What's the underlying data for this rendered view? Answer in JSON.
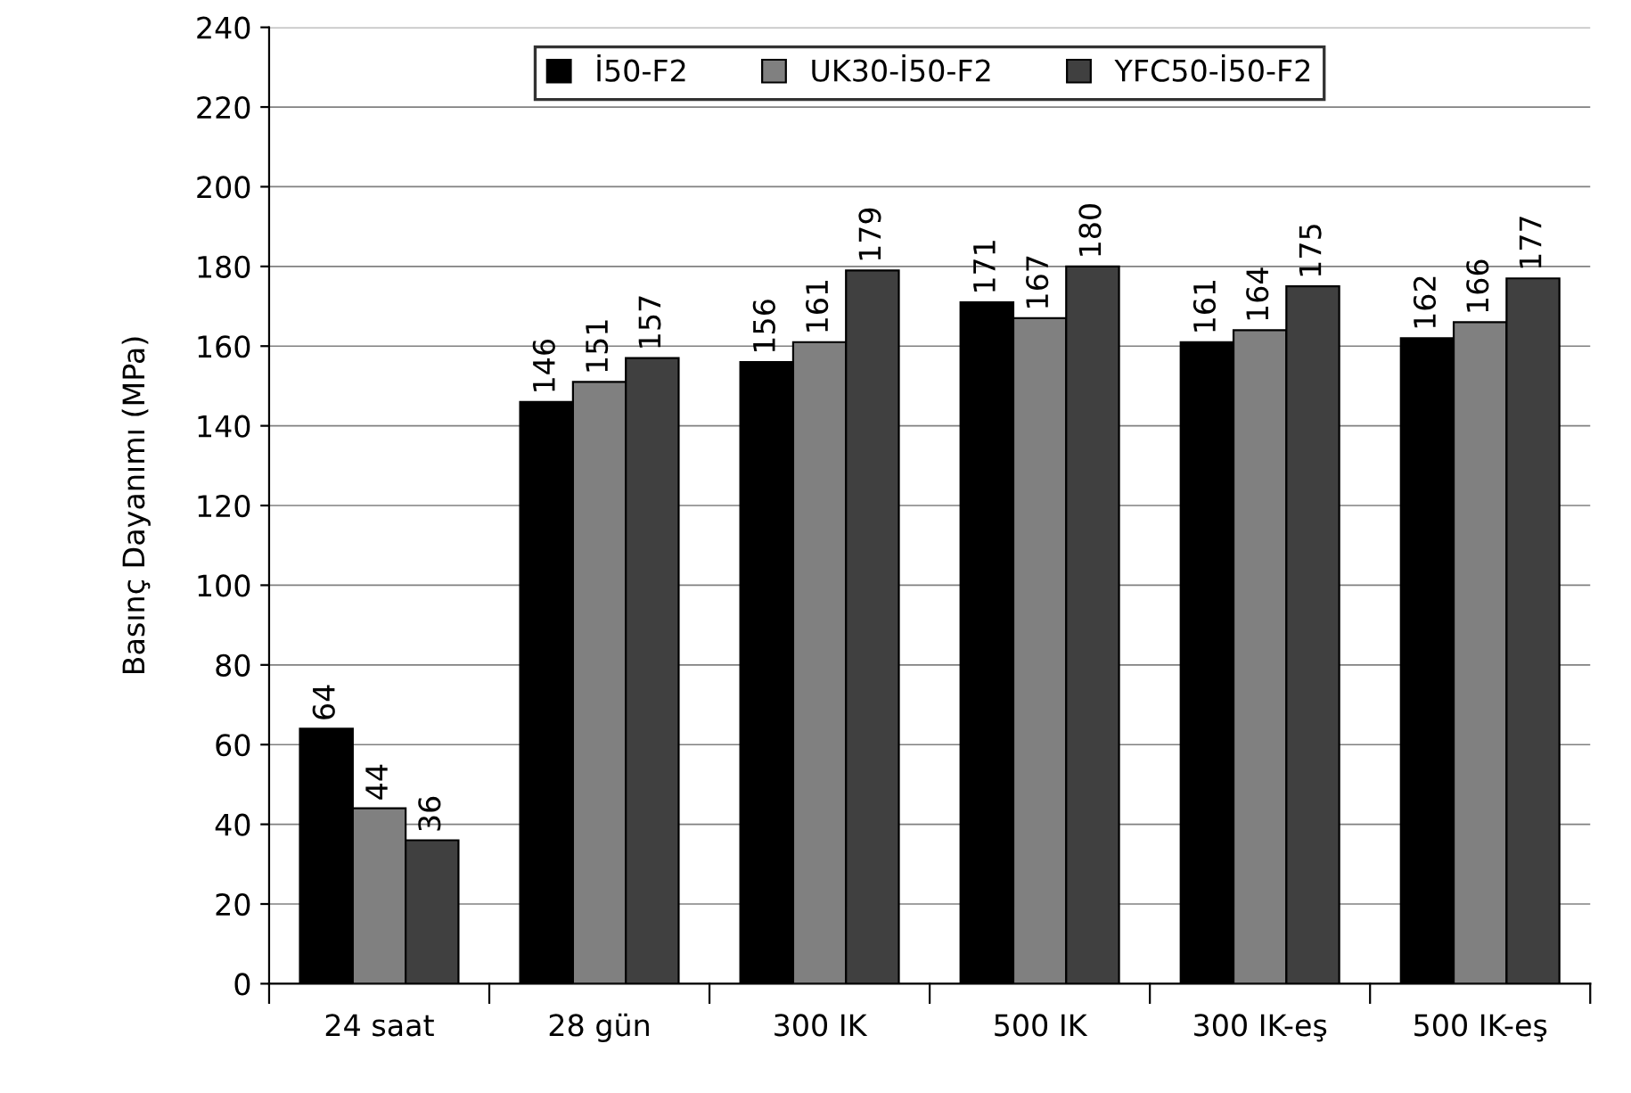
{
  "chart_data": {
    "type": "bar",
    "ylabel": "Basınç Dayanımı (MPa)",
    "categories": [
      "24 saat",
      "28 gün",
      "300 IK",
      "500 IK",
      "300 IK-eş",
      "500 IK-eş"
    ],
    "series": [
      {
        "name": "İ50-F2",
        "color": "#000000",
        "values": [
          64,
          146,
          156,
          171,
          161,
          162
        ]
      },
      {
        "name": "UK30-İ50-F2",
        "color": "#808080",
        "values": [
          44,
          151,
          161,
          167,
          164,
          166
        ]
      },
      {
        "name": "YFC50-İ50-F2",
        "color": "#404040",
        "values": [
          36,
          157,
          179,
          180,
          175,
          177
        ]
      }
    ],
    "ylim": [
      0,
      240
    ],
    "yticks": [
      0,
      20,
      40,
      60,
      80,
      100,
      120,
      140,
      160,
      180,
      200,
      220,
      240
    ],
    "grid": "y",
    "legend": "top",
    "data_labels": true
  }
}
